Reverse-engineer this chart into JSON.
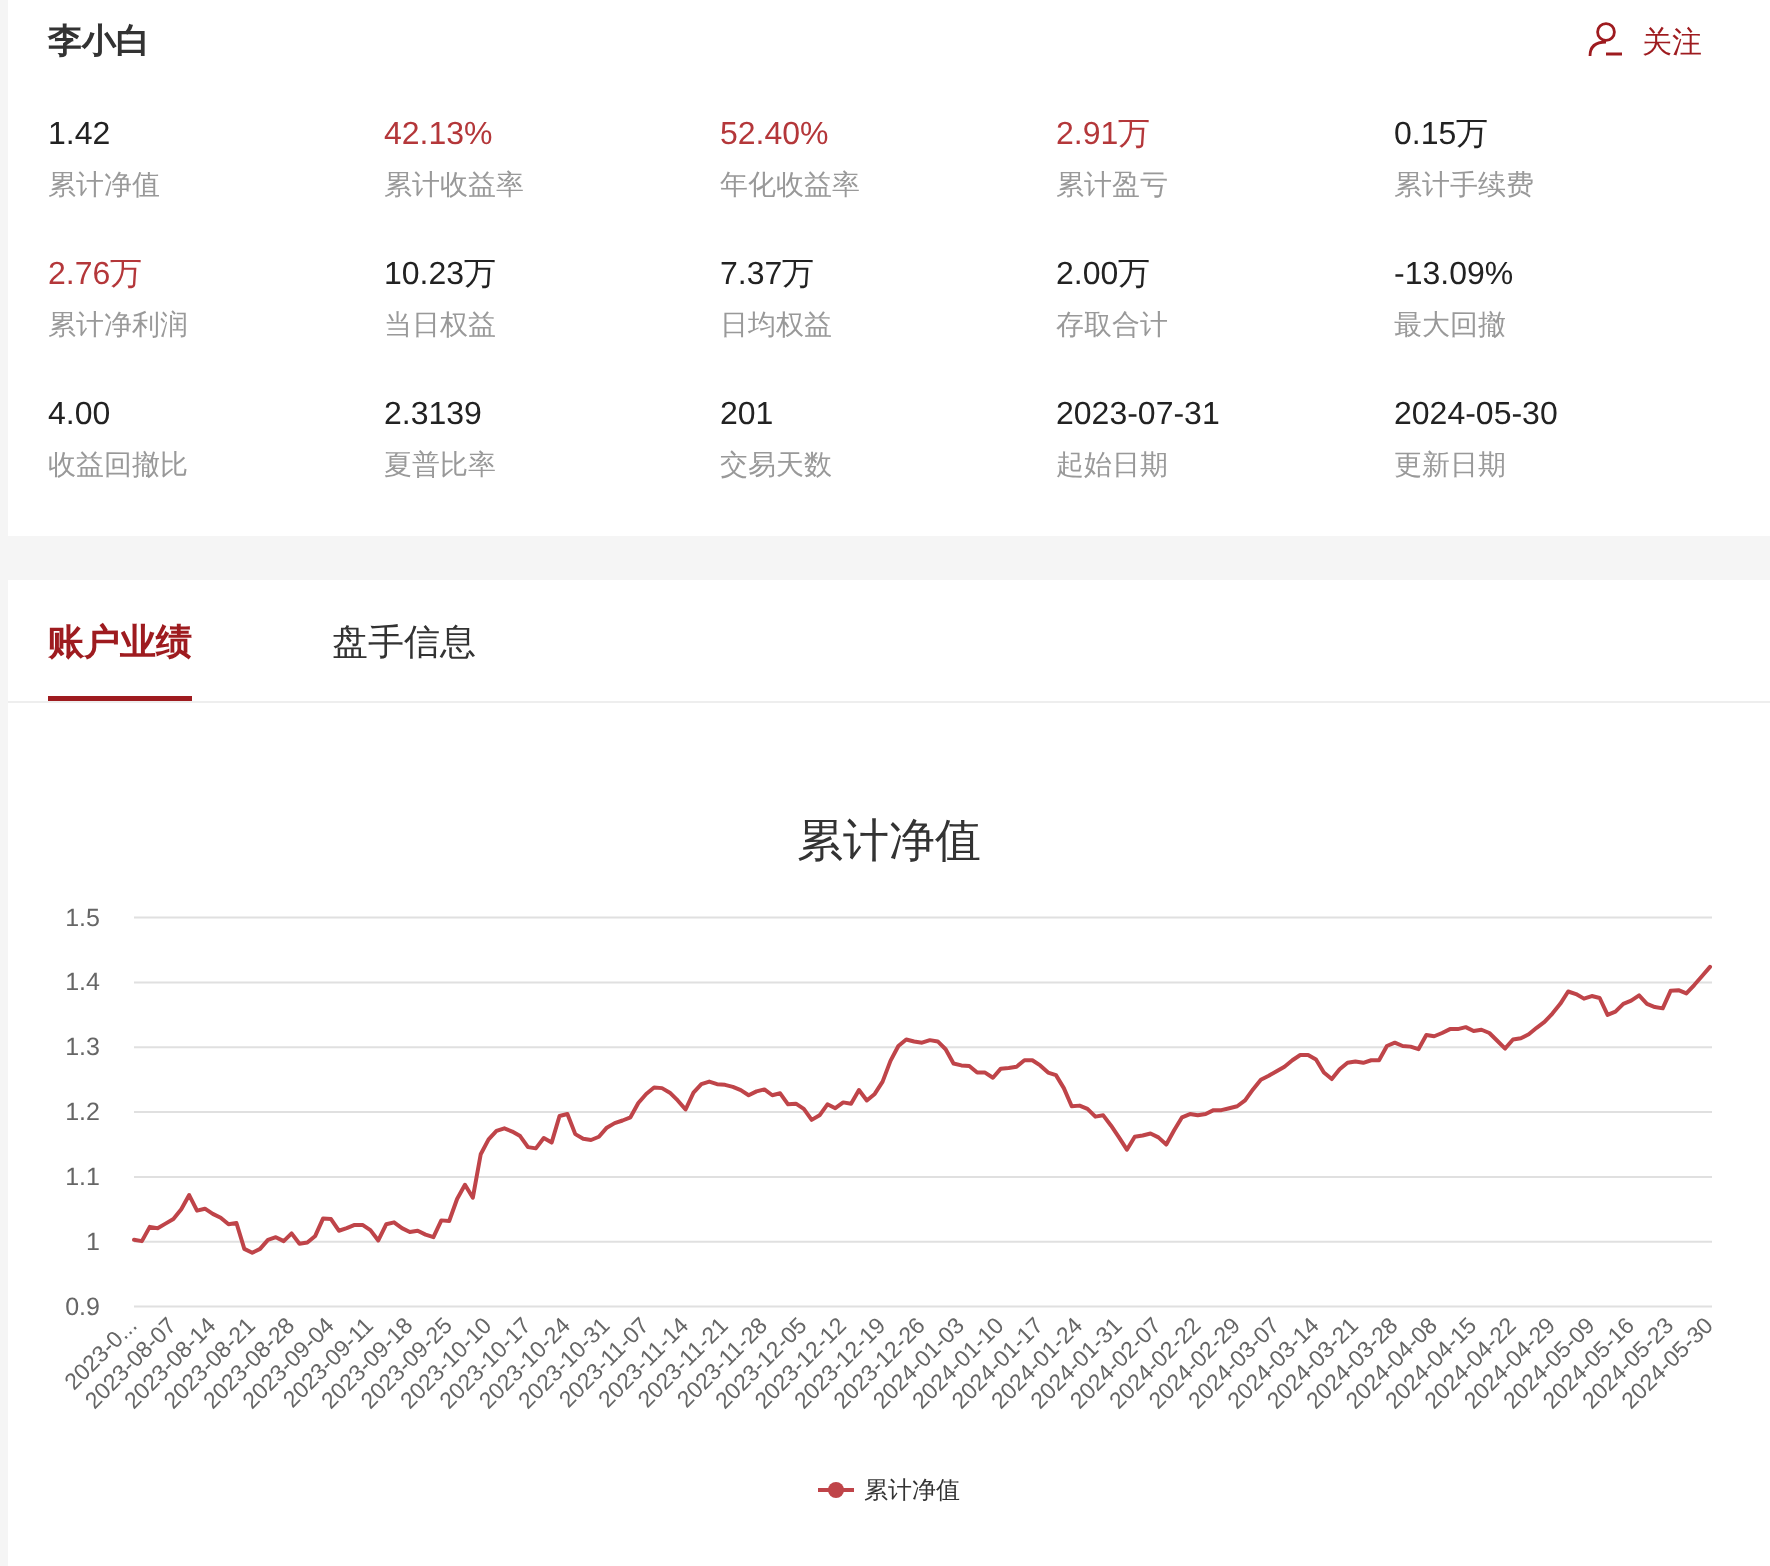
{
  "chart_data": [
    {
      "type": "other",
      "title": "李小白",
      "annotations": [
        "关注",
        "1.42",
        "累计净值",
        "42.13%",
        "累计收益率",
        "52.40%",
        "年化收益率",
        "2.91万",
        "累计盈亏",
        "0.15万",
        "累计手续费",
        "2.76万",
        "累计净利润",
        "10.23万",
        "当日权益",
        "7.37万",
        "日均权益",
        "2.00万",
        "存取合计",
        "-13.09%",
        "最大回撤",
        "4.00",
        "收益回撤比",
        "2.3139",
        "夏普比率",
        "201",
        "交易天数",
        "2023-07-31",
        "起始日期",
        "2024-05-30",
        "更新日期"
      ],
      "colors": [
        "#9e1b1f",
        "#222222",
        "#999999",
        "#b4373a",
        "#999999",
        "#b4373a",
        "#999999",
        "#b4373a",
        "#999999",
        "#222222",
        "#999999",
        "#b4373a",
        "#999999",
        "#222222",
        "#999999",
        "#222222",
        "#999999",
        "#222222",
        "#999999",
        "#222222",
        "#999999",
        "#222222",
        "#999999",
        "#222222",
        "#999999",
        "#222222",
        "#999999",
        "#222222",
        "#999999",
        "#222222",
        "#999999"
      ]
    },
    {
      "type": "other",
      "annotations": [
        "账户业绩",
        "盘手信息"
      ],
      "colors": [
        "#9e1b1f",
        "#333333"
      ]
    },
    {
      "type": "line",
      "title": "累计净值",
      "categories": [
        "2023-0...",
        null,
        null,
        null,
        null,
        "2023-08-07",
        null,
        null,
        null,
        null,
        "2023-08-14",
        null,
        null,
        null,
        null,
        "2023-08-21",
        null,
        null,
        null,
        null,
        "2023-08-28",
        null,
        null,
        null,
        null,
        "2023-09-04",
        null,
        null,
        null,
        null,
        "2023-09-11",
        null,
        null,
        null,
        null,
        "2023-09-18",
        null,
        null,
        null,
        null,
        "2023-09-25",
        null,
        null,
        null,
        null,
        "2023-10-10",
        null,
        null,
        null,
        null,
        "2023-10-17",
        null,
        null,
        null,
        null,
        "2023-10-24",
        null,
        null,
        null,
        null,
        "2023-10-31",
        null,
        null,
        null,
        null,
        "2023-11-07",
        null,
        null,
        null,
        null,
        "2023-11-14",
        null,
        null,
        null,
        null,
        "2023-11-21",
        null,
        null,
        null,
        null,
        "2023-11-28",
        null,
        null,
        null,
        null,
        "2023-12-05",
        null,
        null,
        null,
        null,
        "2023-12-12",
        null,
        null,
        null,
        null,
        "2023-12-19",
        null,
        null,
        null,
        null,
        "2023-12-26",
        null,
        null,
        null,
        null,
        "2024-01-03",
        null,
        null,
        null,
        null,
        "2024-01-10",
        null,
        null,
        null,
        null,
        "2024-01-17",
        null,
        null,
        null,
        null,
        "2024-01-24",
        null,
        null,
        null,
        null,
        "2024-01-31",
        null,
        null,
        null,
        null,
        "2024-02-07",
        null,
        null,
        null,
        null,
        "2024-02-22",
        null,
        null,
        null,
        null,
        "2024-02-29",
        null,
        null,
        null,
        null,
        "2024-03-07",
        null,
        null,
        null,
        null,
        "2024-03-14",
        null,
        null,
        null,
        null,
        "2024-03-21",
        null,
        null,
        null,
        null,
        "2024-03-28",
        null,
        null,
        null,
        null,
        "2024-04-08",
        null,
        null,
        null,
        null,
        "2024-04-15",
        null,
        null,
        null,
        null,
        "2024-04-22",
        null,
        null,
        null,
        null,
        "2024-04-29",
        null,
        null,
        null,
        null,
        "2024-05-09",
        null,
        null,
        null,
        null,
        "2024-05-16",
        null,
        null,
        null,
        null,
        "2024-05-23",
        null,
        null,
        null,
        null,
        "2024-05-30"
      ],
      "series": [
        {
          "name": "累计净值",
          "color": "#bf4449",
          "values": [
            1.003,
            1.001,
            1.023,
            1.021,
            1.028,
            1.035,
            1.05,
            1.072,
            1.048,
            1.051,
            1.043,
            1.037,
            1.027,
            1.029,
            0.989,
            0.983,
            0.989,
            1.003,
            1.007,
            1.001,
            1.013,
            0.997,
            0.999,
            1.009,
            1.036,
            1.035,
            1.017,
            1.021,
            1.026,
            1.026,
            1.018,
            1.002,
            1.027,
            1.03,
            1.021,
            1.015,
            1.017,
            1.011,
            1.007,
            1.033,
            1.032,
            1.066,
            1.088,
            1.068,
            1.135,
            1.158,
            1.171,
            1.175,
            1.17,
            1.163,
            1.146,
            1.144,
            1.16,
            1.153,
            1.194,
            1.197,
            1.166,
            1.159,
            1.157,
            1.162,
            1.176,
            1.183,
            1.187,
            1.192,
            1.214,
            1.228,
            1.238,
            1.237,
            1.23,
            1.218,
            1.204,
            1.23,
            1.243,
            1.247,
            1.243,
            1.242,
            1.239,
            1.234,
            1.226,
            1.232,
            1.235,
            1.226,
            1.229,
            1.212,
            1.213,
            1.205,
            1.188,
            1.195,
            1.212,
            1.206,
            1.215,
            1.213,
            1.234,
            1.218,
            1.228,
            1.247,
            1.279,
            1.302,
            1.312,
            1.309,
            1.307,
            1.311,
            1.309,
            1.297,
            1.275,
            1.272,
            1.271,
            1.261,
            1.261,
            1.253,
            1.267,
            1.268,
            1.27,
            1.28,
            1.28,
            1.272,
            1.261,
            1.257,
            1.237,
            1.209,
            1.21,
            1.205,
            1.193,
            1.195,
            1.179,
            1.161,
            1.142,
            1.162,
            1.164,
            1.167,
            1.161,
            1.15,
            1.172,
            1.192,
            1.197,
            1.195,
            1.197,
            1.203,
            1.203,
            1.206,
            1.209,
            1.218,
            1.235,
            1.25,
            1.256,
            1.263,
            1.27,
            1.28,
            1.288,
            1.288,
            1.281,
            1.261,
            1.251,
            1.266,
            1.276,
            1.278,
            1.276,
            1.28,
            1.28,
            1.302,
            1.307,
            1.302,
            1.301,
            1.297,
            1.319,
            1.317,
            1.322,
            1.328,
            1.328,
            1.331,
            1.325,
            1.327,
            1.322,
            1.31,
            1.298,
            1.312,
            1.314,
            1.32,
            1.33,
            1.339,
            1.352,
            1.367,
            1.386,
            1.382,
            1.375,
            1.379,
            1.376,
            1.35,
            1.355,
            1.367,
            1.372,
            1.38,
            1.367,
            1.362,
            1.36,
            1.387,
            1.388,
            1.383,
            1.396,
            1.41,
            1.424
          ]
        }
      ],
      "ylim": [
        0.9,
        1.5
      ],
      "yticks": [
        0.9,
        1,
        1.1,
        1.2,
        1.3,
        1.4,
        1.5
      ],
      "grid": "y",
      "legend": "bottom"
    }
  ]
}
